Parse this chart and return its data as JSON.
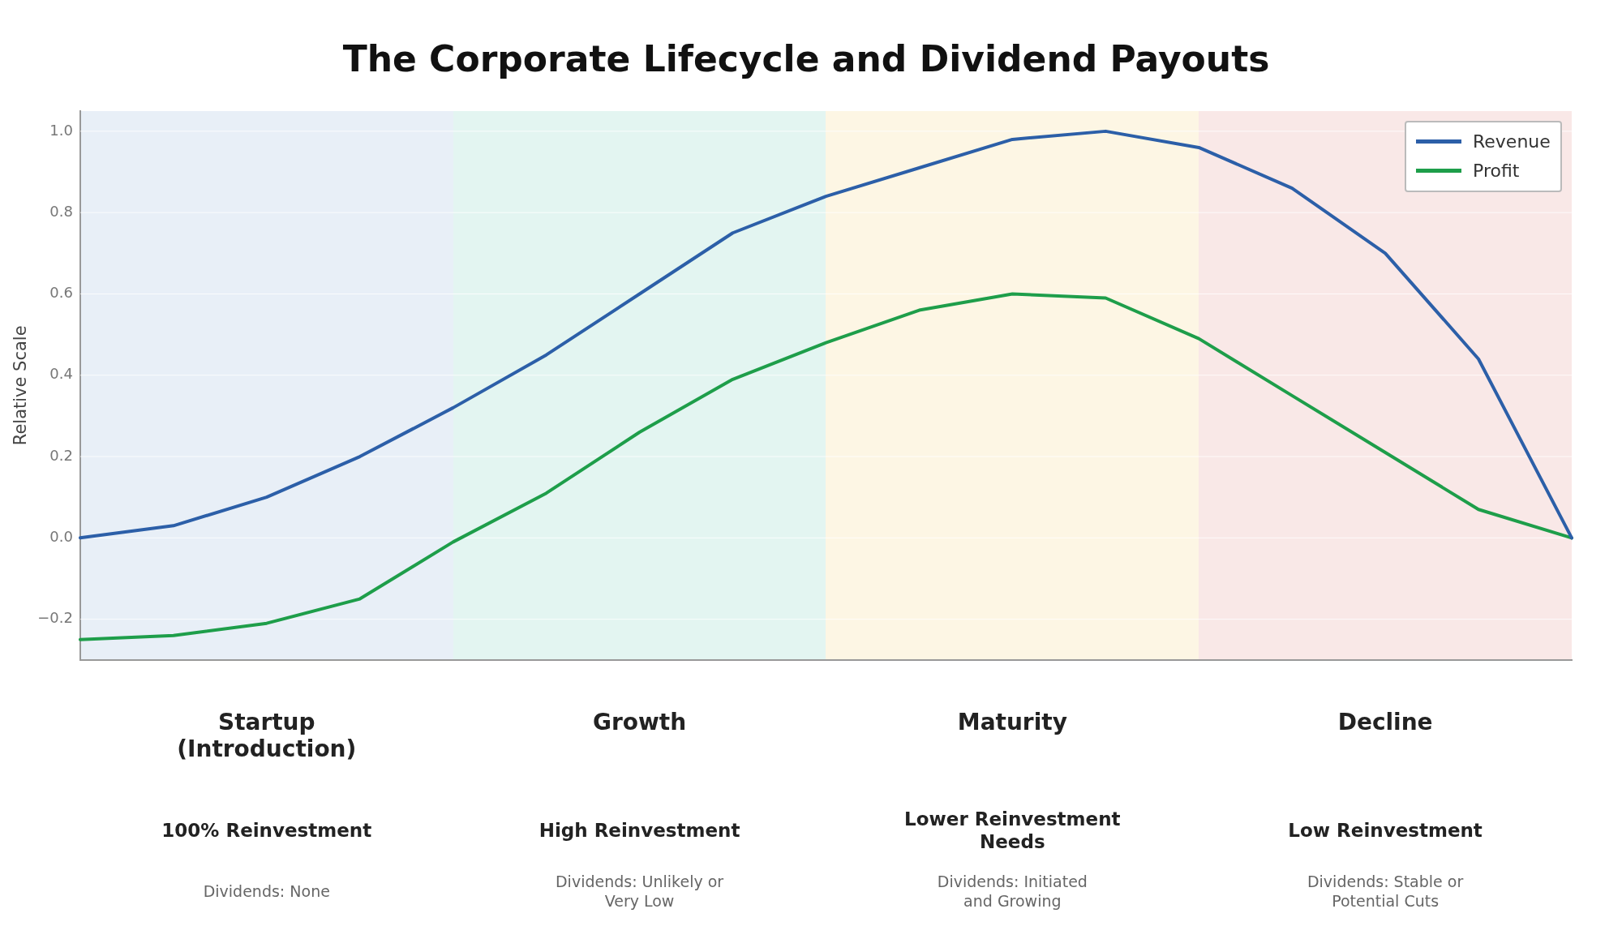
{
  "chart_data": {
    "type": "line",
    "title": "The Corporate Lifecycle and Dividend Payouts",
    "ylabel": "Relative Scale",
    "categories": [
      null,
      null,
      "Startup\n(Introduction)",
      null,
      null,
      null,
      "Growth",
      null,
      null,
      null,
      "Maturity",
      null,
      null,
      null,
      "Decline",
      null,
      null
    ],
    "series": [
      {
        "name": "Revenue",
        "color": "#2c5fa8",
        "values": [
          0,
          0.03,
          0.1,
          0.2,
          0.32,
          0.45,
          0.6,
          0.75,
          0.84,
          0.91,
          0.98,
          1.0,
          0.96,
          0.86,
          0.7,
          0.44,
          0
        ]
      },
      {
        "name": "Profit",
        "color": "#1e9e4a",
        "values": [
          -0.25,
          -0.24,
          -0.21,
          -0.15,
          -0.01,
          0.11,
          0.26,
          0.39,
          0.48,
          0.56,
          0.6,
          0.59,
          0.49,
          0.35,
          0.21,
          0.07,
          0
        ]
      }
    ],
    "ylim": [
      -0.3,
      1.05
    ],
    "yticks": [
      {
        "value": -0.2,
        "label": "−0.2"
      },
      {
        "value": 0,
        "label": "0.0"
      },
      {
        "value": 0.2,
        "label": "0.2"
      },
      {
        "value": 0.4,
        "label": "0.4"
      },
      {
        "value": 0.6,
        "label": "0.6"
      },
      {
        "value": 0.8,
        "label": "0.8"
      },
      {
        "value": 1,
        "label": "1.0"
      }
    ],
    "grid": "y",
    "legend": "top right",
    "line_style": "solid",
    "marker": "none",
    "annotations": [
      "100% Reinvestment",
      "Dividends: None",
      "High Reinvestment",
      "Dividends: Unlikely or\nVery Low",
      "Lower Reinvestment\nNeeds",
      "Dividends: Initiated\nand Growing",
      "Low Reinvestment",
      "Dividends: Stable or\nPotential Cuts"
    ]
  }
}
